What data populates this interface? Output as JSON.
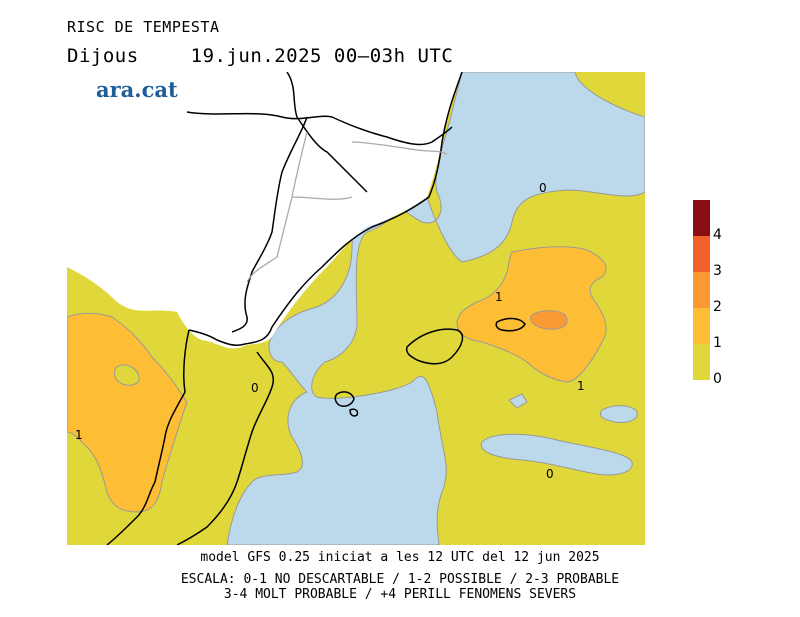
{
  "header": {
    "title": "RISC DE TEMPESTA",
    "day": "Dijous",
    "datetime": "19.jun.2025 00–03h UTC"
  },
  "logo": {
    "text": "ara.cat"
  },
  "map": {
    "contour_labels": [
      "0",
      "1",
      "1",
      "0",
      "1",
      "0"
    ]
  },
  "legend": {
    "levels": [
      "0",
      "1",
      "2",
      "3",
      "4"
    ],
    "colors": [
      "#e0d83a",
      "#fdbe35",
      "#fb9a35",
      "#f2612b",
      "#8a0d12"
    ]
  },
  "footer": {
    "model_line": "model GFS 0.25 iniciat a les 12 UTC del 12 jun 2025",
    "scale_line1": "ESCALA: 0-1 NO DESCARTABLE / 1-2 POSSIBLE / 2-3 PROBABLE",
    "scale_line2": "3-4 MOLT PROBABLE / +4 PERILL FENOMENS SEVERS"
  }
}
